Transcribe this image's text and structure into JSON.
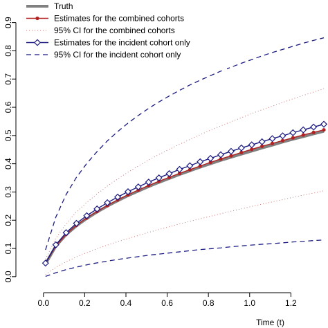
{
  "chart_data": {
    "type": "line",
    "xlabel": "Time (t)",
    "ylabel": "",
    "xlim": [
      -0.1,
      1.38
    ],
    "ylim": [
      -0.02,
      0.98
    ],
    "xticks": [
      0.0,
      0.2,
      0.4,
      0.6,
      0.8,
      1.0,
      1.2
    ],
    "xtick_labels": [
      "0.0",
      "0.2",
      "0.4",
      "0.6",
      "0.8",
      "1.0",
      "1.2"
    ],
    "yticks": [
      0.0,
      0.1,
      0.2,
      0.3,
      0.4,
      0.5,
      0.6,
      0.7,
      0.8,
      0.9
    ],
    "ytick_labels": [
      "0.0",
      "0.1",
      "0.2",
      "0.3",
      "0.4",
      "0.5",
      "0.6",
      "0.7",
      "0.8",
      "0.9"
    ],
    "grid": false,
    "legend_position": "top-left",
    "x": [
      0.01,
      0.06,
      0.11,
      0.16,
      0.21,
      0.26,
      0.31,
      0.36,
      0.41,
      0.46,
      0.51,
      0.56,
      0.61,
      0.66,
      0.71,
      0.76,
      0.81,
      0.86,
      0.91,
      0.96,
      1.01,
      1.06,
      1.11,
      1.16,
      1.21,
      1.26,
      1.31,
      1.36
    ],
    "series": [
      {
        "name": "Truth",
        "style": "solid-thick",
        "color": "#808080",
        "values": [
          0.045,
          0.108,
          0.149,
          0.18,
          0.206,
          0.229,
          0.25,
          0.269,
          0.287,
          0.303,
          0.319,
          0.334,
          0.348,
          0.362,
          0.375,
          0.388,
          0.4,
          0.412,
          0.423,
          0.434,
          0.445,
          0.456,
          0.466,
          0.477,
          0.487,
          0.496,
          0.506,
          0.515
        ]
      },
      {
        "name": "Estimates for the combined cohorts",
        "style": "solid-dot",
        "color": "#b22222",
        "values": [
          0.048,
          0.109,
          0.15,
          0.182,
          0.208,
          0.231,
          0.252,
          0.272,
          0.29,
          0.307,
          0.323,
          0.338,
          0.352,
          0.366,
          0.379,
          0.392,
          0.405,
          0.417,
          0.428,
          0.44,
          0.451,
          0.462,
          0.472,
          0.482,
          0.492,
          0.502,
          0.511,
          0.52
        ]
      },
      {
        "name": "95% CI for the combined cohorts",
        "style": "dotted",
        "color": "#c87878",
        "lower": [
          0.008,
          0.033,
          0.053,
          0.07,
          0.085,
          0.099,
          0.112,
          0.124,
          0.135,
          0.146,
          0.157,
          0.167,
          0.177,
          0.187,
          0.196,
          0.205,
          0.214,
          0.223,
          0.232,
          0.24,
          0.249,
          0.257,
          0.265,
          0.273,
          0.281,
          0.289,
          0.296,
          0.304
        ],
        "upper": [
          0.062,
          0.136,
          0.188,
          0.229,
          0.263,
          0.293,
          0.321,
          0.346,
          0.37,
          0.392,
          0.413,
          0.433,
          0.451,
          0.469,
          0.486,
          0.503,
          0.519,
          0.534,
          0.549,
          0.563,
          0.578,
          0.591,
          0.604,
          0.617,
          0.63,
          0.642,
          0.654,
          0.666
        ]
      },
      {
        "name": "Estimates for the incident cohort only",
        "style": "solid-diamond",
        "color": "#1a1a80",
        "values": [
          0.048,
          0.113,
          0.156,
          0.189,
          0.216,
          0.24,
          0.262,
          0.282,
          0.301,
          0.318,
          0.335,
          0.35,
          0.365,
          0.38,
          0.393,
          0.407,
          0.419,
          0.432,
          0.444,
          0.456,
          0.467,
          0.478,
          0.489,
          0.499,
          0.51,
          0.52,
          0.53,
          0.54
        ]
      },
      {
        "name": "95% CI for the incident cohort only",
        "style": "dashed",
        "color": "#1a1a80",
        "lower": [
          0.001,
          0.014,
          0.025,
          0.034,
          0.042,
          0.049,
          0.055,
          0.061,
          0.066,
          0.071,
          0.076,
          0.08,
          0.084,
          0.088,
          0.092,
          0.096,
          0.099,
          0.102,
          0.106,
          0.109,
          0.112,
          0.115,
          0.117,
          0.12,
          0.123,
          0.125,
          0.128,
          0.13
        ],
        "upper": [
          0.095,
          0.211,
          0.291,
          0.352,
          0.401,
          0.443,
          0.481,
          0.514,
          0.544,
          0.571,
          0.596,
          0.619,
          0.64,
          0.66,
          0.679,
          0.696,
          0.712,
          0.728,
          0.742,
          0.756,
          0.769,
          0.782,
          0.794,
          0.805,
          0.816,
          0.827,
          0.837,
          0.846
        ]
      }
    ],
    "legend": [
      {
        "label": "Truth",
        "series": 0
      },
      {
        "label": "Estimates for the combined cohorts",
        "series": 1
      },
      {
        "label": "95% CI for the combined cohorts",
        "series": 2
      },
      {
        "label": "Estimates for the incident cohort only",
        "series": 3
      },
      {
        "label": "95% CI for the incident cohort only",
        "series": 4
      }
    ]
  }
}
